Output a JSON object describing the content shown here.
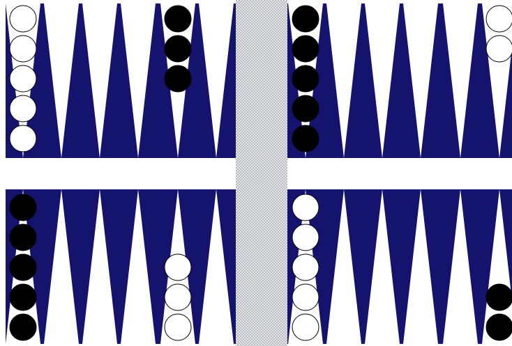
{
  "top_points": [
    {
      "color": "white",
      "count": 5
    },
    {
      "color": "white",
      "count": 0
    },
    {
      "color": "white",
      "count": 0
    },
    {
      "color": "white",
      "count": 0
    },
    {
      "color": "black",
      "count": 3
    },
    {
      "color": "white",
      "count": 0
    },
    {
      "color": "black",
      "count": 5
    },
    {
      "color": "white",
      "count": 0
    },
    {
      "color": "white",
      "count": 0
    },
    {
      "color": "white",
      "count": 0
    },
    {
      "color": "white",
      "count": 0
    },
    {
      "color": "white",
      "count": 2
    }
  ],
  "bottom_points": [
    {
      "color": "black",
      "count": 5
    },
    {
      "color": "white",
      "count": 0
    },
    {
      "color": "white",
      "count": 0
    },
    {
      "color": "white",
      "count": 0
    },
    {
      "color": "white",
      "count": 3
    },
    {
      "color": "white",
      "count": 0
    },
    {
      "color": "white",
      "count": 5
    },
    {
      "color": "white",
      "count": 0
    },
    {
      "color": "white",
      "count": 0
    },
    {
      "color": "white",
      "count": 0
    },
    {
      "color": "white",
      "count": 0
    },
    {
      "color": "black",
      "count": 2
    }
  ]
}
